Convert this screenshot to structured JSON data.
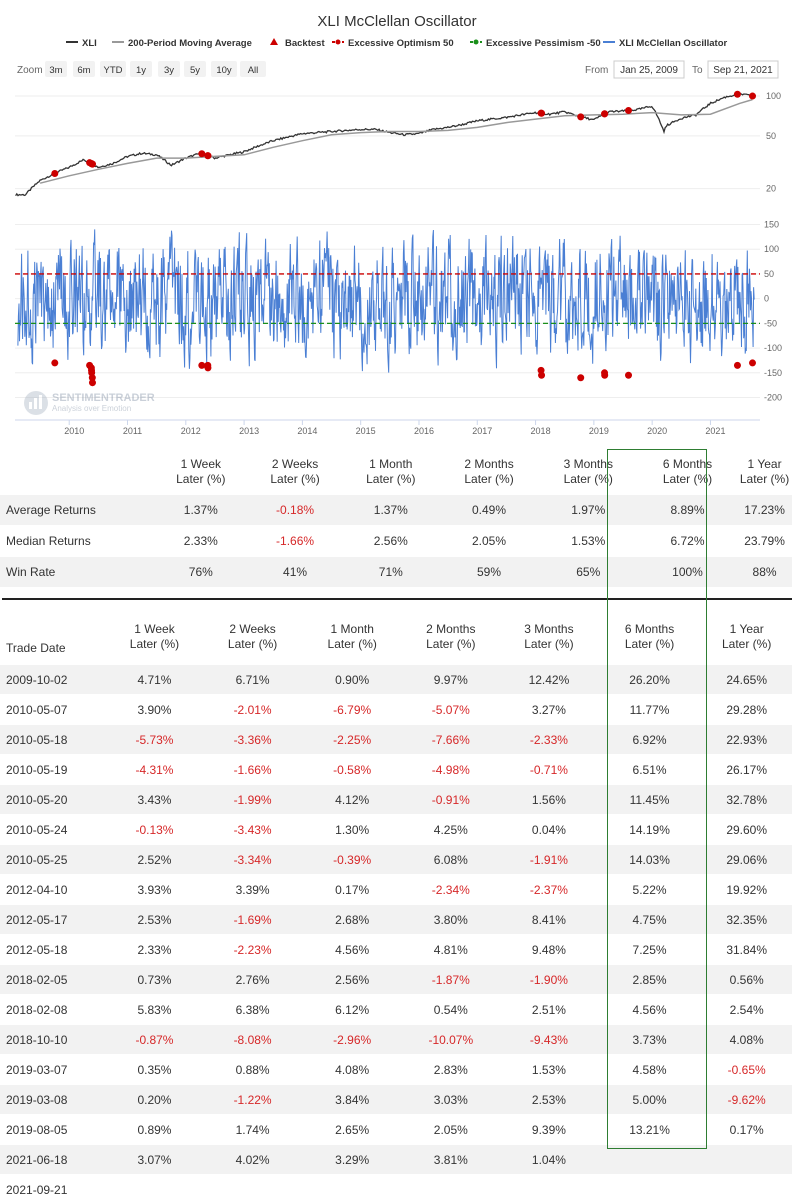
{
  "chart_data": [
    {
      "type": "line",
      "title": "XLI McClellan Oscillator",
      "legend": [
        "XLI",
        "200-Period Moving Average",
        "Backtest",
        "Excessive Optimism 50",
        "Excessive Pessimism -50",
        "XLI McClellan Oscillator"
      ],
      "legend_colors": [
        "#333333",
        "#999999",
        "#cc0000",
        "#cc0000",
        "#1a8f1a",
        "#4a7fd4"
      ],
      "zoom_label": "Zoom",
      "zoom_options": [
        "3m",
        "6m",
        "YTD",
        "1y",
        "3y",
        "5y",
        "10y",
        "All"
      ],
      "range_from_label": "From",
      "range_from": "Jan 25, 2009",
      "range_to_label": "To",
      "range_to": "Sep 21, 2021",
      "x_ticks": [
        "2010",
        "2011",
        "2012",
        "2013",
        "2014",
        "2015",
        "2016",
        "2017",
        "2018",
        "2019",
        "2020",
        "2021"
      ],
      "price_y_ticks": [
        100,
        50,
        20
      ],
      "price_series": {
        "name": "XLI",
        "x": [
          2009.25,
          2009.5,
          2009.75,
          2010.0,
          2010.25,
          2010.5,
          2010.75,
          2011.0,
          2011.25,
          2011.5,
          2011.75,
          2012.0,
          2012.25,
          2012.5,
          2012.75,
          2013.0,
          2013.25,
          2013.5,
          2013.75,
          2014.0,
          2014.25,
          2014.5,
          2014.75,
          2015.0,
          2015.25,
          2015.5,
          2015.75,
          2016.0,
          2016.25,
          2016.5,
          2016.75,
          2017.0,
          2017.25,
          2017.5,
          2017.75,
          2018.0,
          2018.25,
          2018.5,
          2018.75,
          2019.0,
          2019.25,
          2019.5,
          2019.75,
          2020.0,
          2020.2,
          2020.25,
          2020.5,
          2020.75,
          2021.0,
          2021.25,
          2021.5,
          2021.72
        ],
        "y": [
          18,
          23,
          26,
          29,
          33,
          29,
          31,
          35,
          37,
          36,
          30,
          34,
          37,
          34,
          36,
          38,
          42,
          46,
          49,
          52,
          53,
          54,
          55,
          56,
          56,
          53,
          51,
          52,
          56,
          58,
          61,
          65,
          67,
          69,
          72,
          75,
          73,
          76,
          70,
          66,
          76,
          77,
          79,
          84,
          54,
          60,
          68,
          72,
          88,
          98,
          104,
          100
        ]
      },
      "ma_series": {
        "name": "200-Period Moving Average",
        "x": [
          2009.5,
          2010.0,
          2010.5,
          2011.0,
          2011.5,
          2012.0,
          2012.5,
          2013.0,
          2013.5,
          2014.0,
          2014.5,
          2015.0,
          2015.5,
          2016.0,
          2016.5,
          2017.0,
          2017.5,
          2018.0,
          2018.5,
          2019.0,
          2019.5,
          2020.0,
          2020.5,
          2021.0,
          2021.5,
          2021.72
        ],
        "y": [
          22,
          25,
          28,
          31,
          34,
          34,
          35,
          36,
          41,
          46,
          51,
          53,
          54,
          54,
          55,
          58,
          63,
          67,
          71,
          72,
          73,
          75,
          72,
          73,
          88,
          94
        ]
      },
      "osc_y_ticks": [
        150,
        100,
        50,
        0,
        -50,
        -100,
        -150,
        -200
      ],
      "osc_range_note": "oscillator fluctuates roughly between -180 and +150",
      "optimism_level": 50,
      "pessimism_level": -50,
      "backtest_dates": [
        "2009-10-02",
        "2010-05-07",
        "2010-05-18",
        "2010-05-19",
        "2010-05-20",
        "2010-05-24",
        "2010-05-25",
        "2012-04-10",
        "2012-05-17",
        "2012-05-18",
        "2018-02-05",
        "2018-02-08",
        "2018-10-10",
        "2019-03-07",
        "2019-03-08",
        "2019-08-05",
        "2021-06-18",
        "2021-09-21"
      ],
      "backtest_osc_values": [
        -130,
        -135,
        -140,
        -145,
        -150,
        -160,
        -170,
        -135,
        -135,
        -140,
        -145,
        -155,
        -160,
        -150,
        -155,
        -155,
        -135,
        -130
      ]
    },
    {
      "type": "table",
      "title": "",
      "columns": [
        "1 Week Later (%)",
        "2 Weeks Later (%)",
        "1 Month Later (%)",
        "2 Months Later (%)",
        "3 Months Later (%)",
        "6 Months Later (%)",
        "1 Year Later (%)"
      ],
      "rows": [
        {
          "label": "Average Returns",
          "values": [
            "1.37%",
            "-0.18%",
            "1.37%",
            "0.49%",
            "1.97%",
            "8.89%",
            "17.23%"
          ]
        },
        {
          "label": "Median Returns",
          "values": [
            "2.33%",
            "-1.66%",
            "2.56%",
            "2.05%",
            "1.53%",
            "6.72%",
            "23.79%"
          ]
        },
        {
          "label": "Win Rate",
          "values": [
            "76%",
            "41%",
            "71%",
            "59%",
            "65%",
            "100%",
            "88%"
          ]
        }
      ]
    }
  ],
  "logo": {
    "name": "SENTIMENTRADER",
    "tagline": "Analysis over Emotion"
  },
  "stats_header": [
    [
      "1 Week",
      "Later (%)"
    ],
    [
      "2 Weeks",
      "Later (%)"
    ],
    [
      "1 Month",
      "Later (%)"
    ],
    [
      "2 Months",
      "Later (%)"
    ],
    [
      "3 Months",
      "Later (%)"
    ],
    [
      "6 Months",
      "Later (%)"
    ],
    [
      "1 Year",
      "Later (%)"
    ]
  ],
  "stats_rows": [
    {
      "label": "Average Returns",
      "values": [
        "1.37%",
        "-0.18%",
        "1.37%",
        "0.49%",
        "1.97%",
        "8.89%",
        "17.23%"
      ]
    },
    {
      "label": "Median Returns",
      "values": [
        "2.33%",
        "-1.66%",
        "2.56%",
        "2.05%",
        "1.53%",
        "6.72%",
        "23.79%"
      ]
    },
    {
      "label": "Win Rate",
      "values": [
        "76%",
        "41%",
        "71%",
        "59%",
        "65%",
        "100%",
        "88%"
      ]
    }
  ],
  "trades_header_first": "Trade Date",
  "trades_header": [
    [
      "1 Week",
      "Later (%)"
    ],
    [
      "2 Weeks",
      "Later (%)"
    ],
    [
      "1 Month",
      "Later (%)"
    ],
    [
      "2 Months",
      "Later (%)"
    ],
    [
      "3 Months",
      "Later (%)"
    ],
    [
      "6 Months",
      "Later (%)"
    ],
    [
      "1 Year",
      "Later (%)"
    ]
  ],
  "trades": [
    {
      "date": "2009-10-02",
      "values": [
        "4.71%",
        "6.71%",
        "0.90%",
        "9.97%",
        "12.42%",
        "26.20%",
        "24.65%"
      ]
    },
    {
      "date": "2010-05-07",
      "values": [
        "3.90%",
        "-2.01%",
        "-6.79%",
        "-5.07%",
        "3.27%",
        "11.77%",
        "29.28%"
      ]
    },
    {
      "date": "2010-05-18",
      "values": [
        "-5.73%",
        "-3.36%",
        "-2.25%",
        "-7.66%",
        "-2.33%",
        "6.92%",
        "22.93%"
      ]
    },
    {
      "date": "2010-05-19",
      "values": [
        "-4.31%",
        "-1.66%",
        "-0.58%",
        "-4.98%",
        "-0.71%",
        "6.51%",
        "26.17%"
      ]
    },
    {
      "date": "2010-05-20",
      "values": [
        "3.43%",
        "-1.99%",
        "4.12%",
        "-0.91%",
        "1.56%",
        "11.45%",
        "32.78%"
      ]
    },
    {
      "date": "2010-05-24",
      "values": [
        "-0.13%",
        "-3.43%",
        "1.30%",
        "4.25%",
        "0.04%",
        "14.19%",
        "29.60%"
      ]
    },
    {
      "date": "2010-05-25",
      "values": [
        "2.52%",
        "-3.34%",
        "-0.39%",
        "6.08%",
        "-1.91%",
        "14.03%",
        "29.06%"
      ]
    },
    {
      "date": "2012-04-10",
      "values": [
        "3.93%",
        "3.39%",
        "0.17%",
        "-2.34%",
        "-2.37%",
        "5.22%",
        "19.92%"
      ]
    },
    {
      "date": "2012-05-17",
      "values": [
        "2.53%",
        "-1.69%",
        "2.68%",
        "3.80%",
        "8.41%",
        "4.75%",
        "32.35%"
      ]
    },
    {
      "date": "2012-05-18",
      "values": [
        "2.33%",
        "-2.23%",
        "4.56%",
        "4.81%",
        "9.48%",
        "7.25%",
        "31.84%"
      ]
    },
    {
      "date": "2018-02-05",
      "values": [
        "0.73%",
        "2.76%",
        "2.56%",
        "-1.87%",
        "-1.90%",
        "2.85%",
        "0.56%"
      ]
    },
    {
      "date": "2018-02-08",
      "values": [
        "5.83%",
        "6.38%",
        "6.12%",
        "0.54%",
        "2.51%",
        "4.56%",
        "2.54%"
      ]
    },
    {
      "date": "2018-10-10",
      "values": [
        "-0.87%",
        "-8.08%",
        "-2.96%",
        "-10.07%",
        "-9.43%",
        "3.73%",
        "4.08%"
      ]
    },
    {
      "date": "2019-03-07",
      "values": [
        "0.35%",
        "0.88%",
        "4.08%",
        "2.83%",
        "1.53%",
        "4.58%",
        "-0.65%"
      ]
    },
    {
      "date": "2019-03-08",
      "values": [
        "0.20%",
        "-1.22%",
        "3.84%",
        "3.03%",
        "2.53%",
        "5.00%",
        "-9.62%"
      ]
    },
    {
      "date": "2019-08-05",
      "values": [
        "0.89%",
        "1.74%",
        "2.65%",
        "2.05%",
        "9.39%",
        "13.21%",
        "0.17%"
      ]
    },
    {
      "date": "2021-06-18",
      "values": [
        "3.07%",
        "4.02%",
        "3.29%",
        "3.81%",
        "1.04%",
        "",
        ""
      ]
    },
    {
      "date": "2021-09-21",
      "values": [
        "",
        "",
        "",
        "",
        "",
        "",
        ""
      ]
    }
  ],
  "colors": {
    "negative": "#d62728",
    "highlight_box": "#2e7d32",
    "oscillator": "#4a7fd4",
    "price": "#333333",
    "ma": "#999999"
  }
}
